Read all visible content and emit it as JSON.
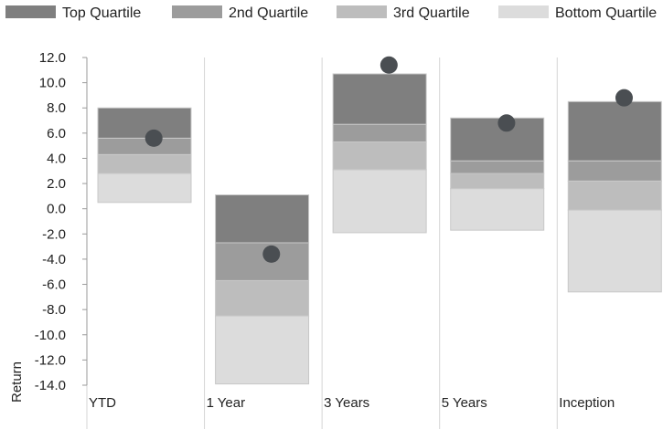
{
  "chart_data": {
    "type": "bar",
    "stacked": "floating-range",
    "title": "",
    "xlabel": "",
    "ylabel": "Return",
    "ylim": [
      -14.0,
      12.0
    ],
    "ytick_step": 2.0,
    "grid": {
      "vertical": true,
      "horizontal": false
    },
    "legend": "top",
    "categories": [
      "YTD",
      "1 Year",
      "3 Years",
      "5 Years",
      "Inception"
    ],
    "series": [
      {
        "name": "Top Quartile",
        "color": "#7f7f7f",
        "ranges": [
          [
            5.6,
            8.0
          ],
          [
            -2.7,
            1.1
          ],
          [
            6.7,
            10.7
          ],
          [
            3.8,
            7.2
          ],
          [
            3.8,
            8.5
          ]
        ]
      },
      {
        "name": "2nd Quartile",
        "color": "#9c9c9c",
        "ranges": [
          [
            4.3,
            5.6
          ],
          [
            -5.7,
            -2.7
          ],
          [
            5.3,
            6.7
          ],
          [
            2.8,
            3.8
          ],
          [
            2.2,
            3.8
          ]
        ]
      },
      {
        "name": "3rd Quartile",
        "color": "#bdbdbd",
        "ranges": [
          [
            2.8,
            4.3
          ],
          [
            -8.5,
            -5.7
          ],
          [
            3.1,
            5.3
          ],
          [
            1.6,
            2.8
          ],
          [
            -0.1,
            2.2
          ]
        ]
      },
      {
        "name": "Bottom Quartile",
        "color": "#dcdcdc",
        "ranges": [
          [
            0.5,
            2.8
          ],
          [
            -13.9,
            -8.5
          ],
          [
            -1.9,
            3.1
          ],
          [
            -1.7,
            1.6
          ],
          [
            -6.6,
            -0.1
          ]
        ]
      }
    ],
    "points": {
      "color": "#4a4e52",
      "values": [
        5.6,
        -3.6,
        11.4,
        6.8,
        8.8
      ]
    }
  }
}
